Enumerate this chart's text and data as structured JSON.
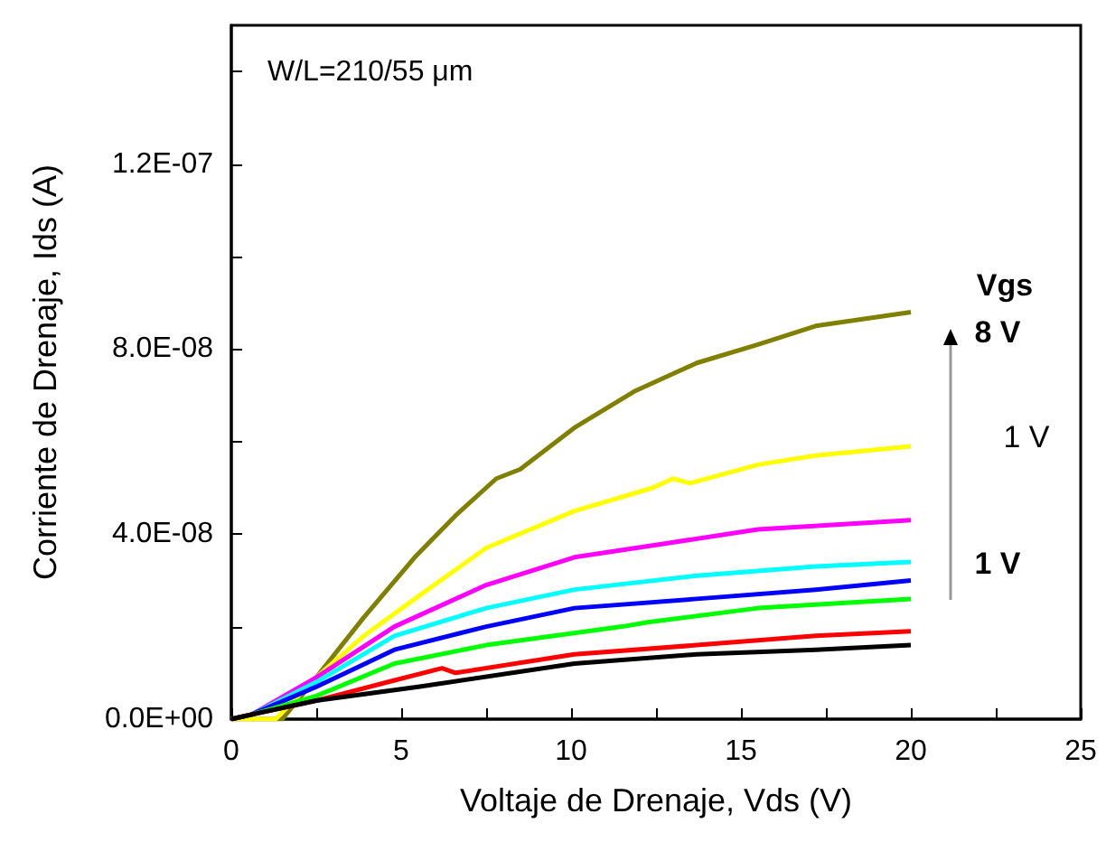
{
  "chart_data": {
    "type": "line",
    "xlabel": "Voltaje de Drenaje, Vds (V)",
    "ylabel": "Corriente de Drenaje, Ids (A)",
    "annotations": [
      "W/L=210/55 μm",
      "Vgs",
      "8 V",
      "1 V",
      "1 V"
    ],
    "xlim": [
      0,
      25
    ],
    "xticks": [
      0,
      {
        "value": 2.5,
        "label": null
      },
      5,
      {
        "value": 7.5,
        "label": null
      },
      10,
      {
        "value": 12.5,
        "label": null
      },
      15,
      {
        "value": 17.5,
        "label": null
      },
      20,
      {
        "value": 22.5,
        "label": null
      },
      25
    ],
    "ylim": [
      0,
      1.5e-07
    ],
    "yticks": [
      {
        "value": 0,
        "label": "0.0E+00"
      },
      {
        "value": 2e-08,
        "label": null
      },
      {
        "value": 4e-08,
        "label": "4.0E-08"
      },
      {
        "value": 6e-08,
        "label": null
      },
      {
        "value": 8e-08,
        "label": "8.0E-08"
      },
      {
        "value": 1e-07,
        "label": null
      },
      {
        "value": 1.2e-07,
        "label": "1.2E-07"
      },
      {
        "value": 1.4e-07,
        "label": null
      }
    ],
    "grid": false,
    "marker": "none",
    "line_style": "solid",
    "series": [
      {
        "color": "#808000",
        "x": [
          0,
          1.5,
          2.5,
          3.9,
          5.4,
          6.6,
          7.8,
          8.5,
          10.1,
          11.9,
          13.7,
          15.5,
          17.2,
          20
        ],
        "values": [
          0,
          0,
          9e-09,
          2.2e-08,
          3.5e-08,
          4.4e-08,
          5.2e-08,
          5.4e-08,
          6.3e-08,
          7.1e-08,
          7.7e-08,
          8.1e-08,
          8.5e-08,
          8.8e-08
        ]
      },
      {
        "color": "#ffff00",
        "x": [
          0,
          1.3,
          2.5,
          3.9,
          5.4,
          7.5,
          10.1,
          12.4,
          13,
          13.5,
          15.5,
          17.2,
          20
        ],
        "values": [
          0,
          0,
          9e-09,
          1.8e-08,
          2.6e-08,
          3.7e-08,
          4.5e-08,
          5e-08,
          5.2e-08,
          5.1e-08,
          5.5e-08,
          5.7e-08,
          5.9e-08
        ]
      },
      {
        "color": "#ff00ff",
        "x": [
          0,
          0.6,
          2.5,
          4.8,
          7.5,
          10.1,
          12.8,
          15.5,
          20
        ],
        "values": [
          0,
          1e-09,
          9e-09,
          2e-08,
          2.9e-08,
          3.5e-08,
          3.8e-08,
          4.1e-08,
          4.3e-08
        ]
      },
      {
        "color": "#00ffff",
        "x": [
          0,
          0.6,
          2.5,
          4.8,
          7.5,
          10.1,
          13.7,
          17.2,
          20
        ],
        "values": [
          0,
          1e-09,
          8e-09,
          1.8e-08,
          2.4e-08,
          2.8e-08,
          3.1e-08,
          3.3e-08,
          3.4e-08
        ]
      },
      {
        "color": "#0000ff",
        "x": [
          0,
          0.6,
          2.5,
          4.8,
          7.5,
          10.1,
          13.7,
          17.2,
          20
        ],
        "values": [
          0,
          1e-09,
          7e-09,
          1.5e-08,
          2e-08,
          2.4e-08,
          2.6e-08,
          2.8e-08,
          3e-08
        ]
      },
      {
        "color": "#00ff00",
        "x": [
          0,
          0.6,
          2.5,
          4.8,
          7.5,
          11.5,
          12.3,
          15.5,
          20
        ],
        "values": [
          0,
          1e-09,
          5e-09,
          1.2e-08,
          1.6e-08,
          2e-08,
          2.1e-08,
          2.4e-08,
          2.6e-08
        ]
      },
      {
        "color": "#ff0000",
        "x": [
          0,
          0.6,
          2.5,
          4.6,
          6.2,
          6.6,
          10.1,
          13.7,
          17.2,
          20
        ],
        "values": [
          0,
          1e-09,
          4e-09,
          8e-09,
          1.1e-08,
          1e-08,
          1.4e-08,
          1.6e-08,
          1.8e-08,
          1.9e-08
        ]
      },
      {
        "color": "#000000",
        "x": [
          0,
          0.6,
          2.5,
          5.5,
          10.1,
          13.7,
          17.2,
          20
        ],
        "values": [
          0,
          1e-09,
          4e-09,
          7e-09,
          1.2e-08,
          1.4e-08,
          1.5e-08,
          1.6e-08
        ]
      }
    ]
  }
}
